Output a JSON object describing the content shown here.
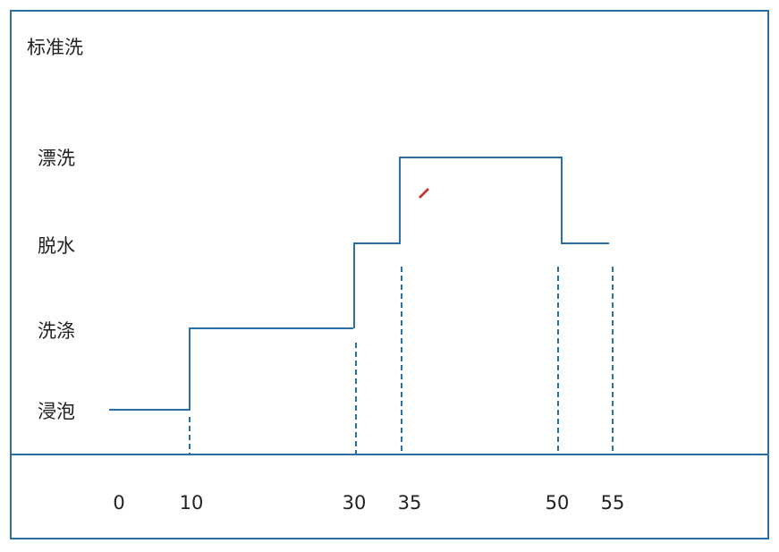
{
  "title": "标准洗",
  "stages": [
    "漂洗",
    "脱水",
    "洗涤",
    "浸泡"
  ],
  "time_labels": [
    "0",
    "10",
    "30",
    "35",
    "50",
    "55"
  ]
}
